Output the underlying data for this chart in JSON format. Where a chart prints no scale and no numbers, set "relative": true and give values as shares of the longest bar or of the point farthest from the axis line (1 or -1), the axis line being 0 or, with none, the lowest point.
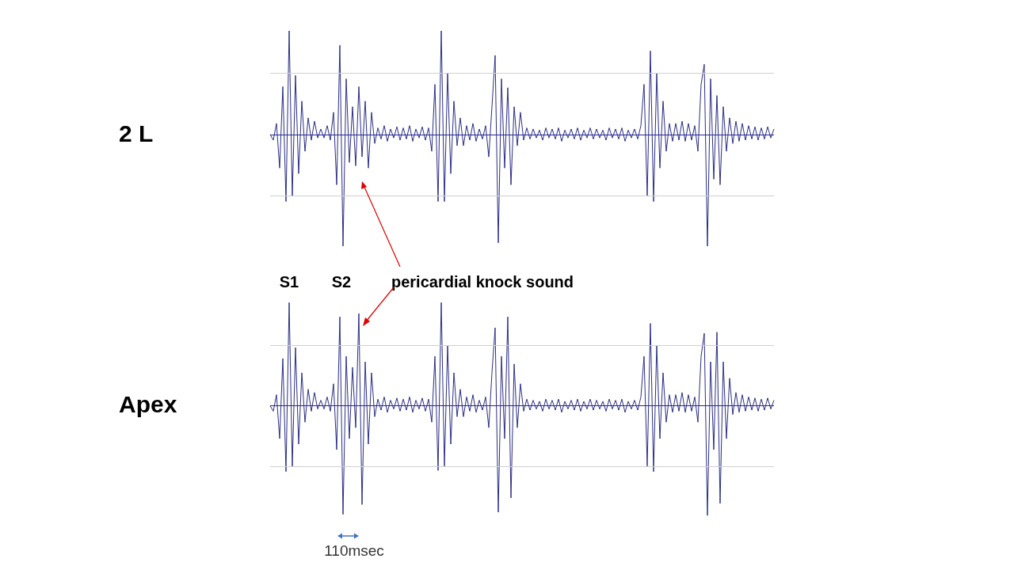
{
  "chart_data": [
    {
      "type": "line",
      "ylabel": "2 L",
      "relative": true,
      "ref_lines": [
        {
          "axis": "y",
          "value": 0.55,
          "color": "#d0d0d0"
        },
        {
          "axis": "y",
          "value": -0.55,
          "color": "#d0d0d0"
        },
        {
          "axis": "y",
          "value": 0,
          "color": "#1f2a9a"
        }
      ],
      "categories": [
        null,
        null,
        null,
        null,
        null,
        null,
        null,
        null,
        null,
        null,
        null,
        null,
        null,
        null,
        null,
        null,
        null,
        null,
        null,
        null,
        null,
        null,
        null,
        null,
        null,
        null,
        null,
        null,
        null,
        null,
        null,
        null,
        null,
        null,
        null,
        null,
        null,
        null,
        null,
        null,
        null,
        null,
        null,
        null,
        null,
        null,
        null,
        null,
        null,
        null,
        null,
        null,
        null,
        null,
        null,
        null,
        null,
        null,
        null,
        null,
        null,
        null,
        null,
        null,
        null,
        null,
        null,
        null,
        null,
        null,
        null,
        null,
        null,
        null,
        null,
        null,
        null,
        null,
        null,
        null,
        null,
        null,
        null,
        null,
        null,
        null,
        null,
        null,
        null,
        null,
        null,
        null,
        null,
        null,
        null,
        null,
        null,
        null,
        null,
        null,
        null,
        null,
        null,
        null,
        null,
        null,
        null,
        null,
        null,
        null,
        null,
        null,
        null,
        null,
        null,
        null,
        null,
        null,
        null,
        null,
        null,
        null,
        null,
        null,
        null,
        null,
        null,
        null,
        null,
        null,
        null,
        null,
        null,
        null,
        null,
        null,
        null,
        null,
        null,
        null,
        null,
        null,
        null,
        null,
        null,
        null,
        null,
        null,
        null,
        null,
        null,
        null,
        null,
        null,
        null,
        null,
        null,
        null,
        null,
        null
      ],
      "series": [
        {
          "color": "#2b2e83",
          "values": [
            0,
            -0.05,
            0.1,
            -0.3,
            0.43,
            -0.6,
            0.93,
            -0.55,
            0.53,
            -0.35,
            0.3,
            -0.15,
            0.15,
            -0.05,
            0.12,
            -0.03,
            0.05,
            -0.03,
            0.08,
            -0.05,
            0.2,
            -0.45,
            0.8,
            -1,
            0.5,
            -0.25,
            0.25,
            -0.28,
            0.43,
            -0.2,
            0.3,
            -0.3,
            0.2,
            -0.08,
            0.06,
            -0.04,
            0.08,
            -0.06,
            0.05,
            -0.03,
            0.07,
            -0.05,
            0.06,
            -0.04,
            0.08,
            -0.06,
            0.05,
            -0.03,
            0.07,
            -0.05,
            0.06,
            -0.15,
            0.45,
            -0.6,
            0.93,
            -0.6,
            0.55,
            -0.35,
            0.3,
            -0.1,
            0.15,
            -0.1,
            0.08,
            -0.05,
            0.1,
            -0.06,
            0.05,
            -0.04,
            0.08,
            -0.2,
            0.25,
            0.71,
            -0.97,
            0.5,
            -0.3,
            0.42,
            -0.45,
            0.25,
            -0.1,
            0.2,
            -0.05,
            0.06,
            -0.04,
            0.05,
            -0.03,
            0.04,
            -0.05,
            0.06,
            -0.03,
            0.05,
            -0.04,
            0.06,
            -0.06,
            0.04,
            -0.03,
            0.05,
            -0.04,
            0.06,
            -0.05,
            0.04,
            -0.03,
            0.06,
            -0.04,
            0.05,
            -0.03,
            0.04,
            -0.05,
            0.06,
            -0.03,
            0.05,
            -0.04,
            0.06,
            -0.06,
            0.04,
            -0.03,
            0.05,
            -0.04,
            0.08,
            0.45,
            -0.55,
            0.75,
            -0.6,
            0.55,
            -0.3,
            0.3,
            -0.15,
            0.1,
            -0.06,
            0.1,
            -0.05,
            0.12,
            -0.06,
            0.1,
            -0.05,
            0.08,
            -0.15,
            0.45,
            0.63,
            -1,
            0.5,
            -0.4,
            0.35,
            -0.45,
            0.25,
            -0.15,
            0.15,
            -0.08,
            0.12,
            -0.06,
            0.1,
            -0.05,
            0.08,
            -0.04,
            0.07,
            -0.05,
            0.06,
            -0.04,
            0.07,
            -0.03,
            0.05
          ]
        }
      ]
    },
    {
      "type": "line",
      "ylabel": "Apex",
      "relative": true,
      "ref_lines": [
        {
          "axis": "y",
          "value": 0.55,
          "color": "#d0d0d0"
        },
        {
          "axis": "y",
          "value": -0.55,
          "color": "#d0d0d0"
        },
        {
          "axis": "y",
          "value": 0,
          "color": "#1f2a9a"
        }
      ],
      "annotations": [
        "S1",
        "S2",
        "pericardial knock sound",
        "110msec"
      ],
      "categories": [
        null,
        null,
        null,
        null,
        null,
        null,
        null,
        null,
        null,
        null,
        null,
        null,
        null,
        null,
        null,
        null,
        null,
        null,
        null,
        null,
        null,
        null,
        null,
        null,
        null,
        null,
        null,
        null,
        null,
        null,
        null,
        null,
        null,
        null,
        null,
        null,
        null,
        null,
        null,
        null,
        null,
        null,
        null,
        null,
        null,
        null,
        null,
        null,
        null,
        null,
        null,
        null,
        null,
        null,
        null,
        null,
        null,
        null,
        null,
        null,
        null,
        null,
        null,
        null,
        null,
        null,
        null,
        null,
        null,
        null,
        null,
        null,
        null,
        null,
        null,
        null,
        null,
        null,
        null,
        null,
        null,
        null,
        null,
        null,
        null,
        null,
        null,
        null,
        null,
        null,
        null,
        null,
        null,
        null,
        null,
        null,
        null,
        null,
        null,
        null,
        null,
        null,
        null,
        null,
        null,
        null,
        null,
        null,
        null,
        null,
        null,
        null,
        null,
        null,
        null,
        null,
        null,
        null,
        null,
        null,
        null,
        null,
        null,
        null,
        null,
        null,
        null,
        null,
        null,
        null,
        null,
        null,
        null,
        null,
        null,
        null,
        null,
        null,
        null,
        null,
        null,
        null,
        null,
        null,
        null,
        null,
        null,
        null,
        null,
        null,
        null,
        null,
        null,
        null,
        null,
        null,
        null,
        null,
        null,
        null
      ],
      "series": [
        {
          "color": "#2b2e83",
          "values": [
            0,
            -0.05,
            0.1,
            -0.3,
            0.43,
            -0.6,
            0.94,
            -0.55,
            0.53,
            -0.35,
            0.3,
            -0.15,
            0.15,
            -0.05,
            0.12,
            -0.03,
            0.05,
            -0.03,
            0.08,
            -0.05,
            0.2,
            -0.4,
            0.81,
            -0.99,
            0.45,
            -0.3,
            0.35,
            -0.2,
            0.84,
            -0.9,
            0.4,
            -0.35,
            0.3,
            -0.1,
            0.06,
            -0.04,
            0.08,
            -0.06,
            0.05,
            -0.03,
            0.07,
            -0.05,
            0.06,
            -0.04,
            0.08,
            -0.06,
            0.05,
            -0.03,
            0.07,
            -0.05,
            0.06,
            -0.15,
            0.45,
            -0.59,
            0.94,
            -0.55,
            0.55,
            -0.35,
            0.3,
            -0.1,
            0.15,
            -0.1,
            0.08,
            -0.05,
            0.1,
            -0.06,
            0.05,
            -0.04,
            0.08,
            -0.2,
            0.3,
            0.71,
            -0.97,
            0.45,
            -0.3,
            0.81,
            -0.84,
            0.38,
            -0.2,
            0.2,
            -0.05,
            0.06,
            -0.04,
            0.05,
            -0.03,
            0.04,
            -0.05,
            0.06,
            -0.03,
            0.05,
            -0.04,
            0.06,
            -0.06,
            0.04,
            -0.03,
            0.05,
            -0.04,
            0.06,
            -0.05,
            0.04,
            -0.03,
            0.06,
            -0.04,
            0.05,
            -0.03,
            0.04,
            -0.05,
            0.06,
            -0.03,
            0.05,
            -0.04,
            0.06,
            -0.06,
            0.04,
            -0.03,
            0.05,
            -0.04,
            0.08,
            0.45,
            -0.55,
            0.75,
            -0.6,
            0.55,
            -0.3,
            0.3,
            -0.15,
            0.1,
            -0.06,
            0.1,
            -0.05,
            0.12,
            -0.06,
            0.1,
            -0.05,
            0.08,
            -0.15,
            0.45,
            0.66,
            -1,
            0.4,
            -0.4,
            0.67,
            -0.89,
            0.4,
            -0.3,
            0.25,
            -0.08,
            0.12,
            -0.06,
            0.1,
            -0.05,
            0.08,
            -0.04,
            0.07,
            -0.05,
            0.06,
            -0.04,
            0.07,
            -0.03,
            0.05
          ]
        }
      ]
    }
  ]
}
